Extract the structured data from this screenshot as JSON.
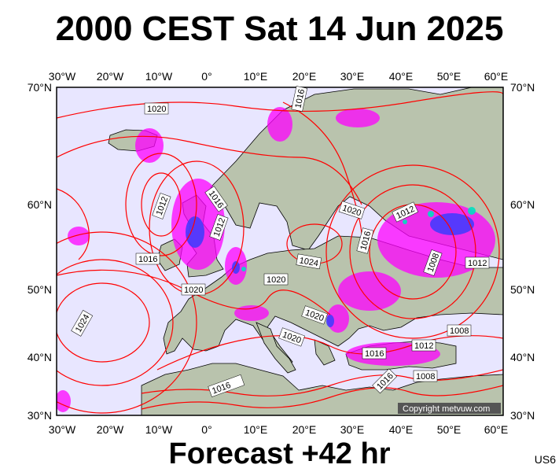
{
  "title": "2000 CEST Sat 14 Jun 2025",
  "footer": "Forecast +42 hr",
  "code": "US6",
  "copyright": "Copyright metvuw.com",
  "lon_labels": [
    "30°W",
    "20°W",
    "10°W",
    "0°",
    "10°E",
    "20°E",
    "30°E",
    "40°E",
    "50°E",
    "60°E"
  ],
  "lat_labels": [
    "70°N",
    "60°N",
    "50°N",
    "40°N",
    "30°N"
  ],
  "isobars": [
    "1020",
    "1016",
    "1012",
    "1016",
    "1012",
    "1016",
    "1020",
    "1024",
    "1020",
    "1020",
    "1020",
    "1012",
    "1016",
    "1008",
    "1012",
    "1024",
    "1020",
    "1008",
    "1016",
    "1012",
    "1008",
    "1016",
    "1016"
  ],
  "colors": {
    "sea": "#e8e6ff",
    "land": "#b9c3ad",
    "isobar": "#ff0000",
    "rain": "#ff00ff",
    "coast": "#000000"
  }
}
